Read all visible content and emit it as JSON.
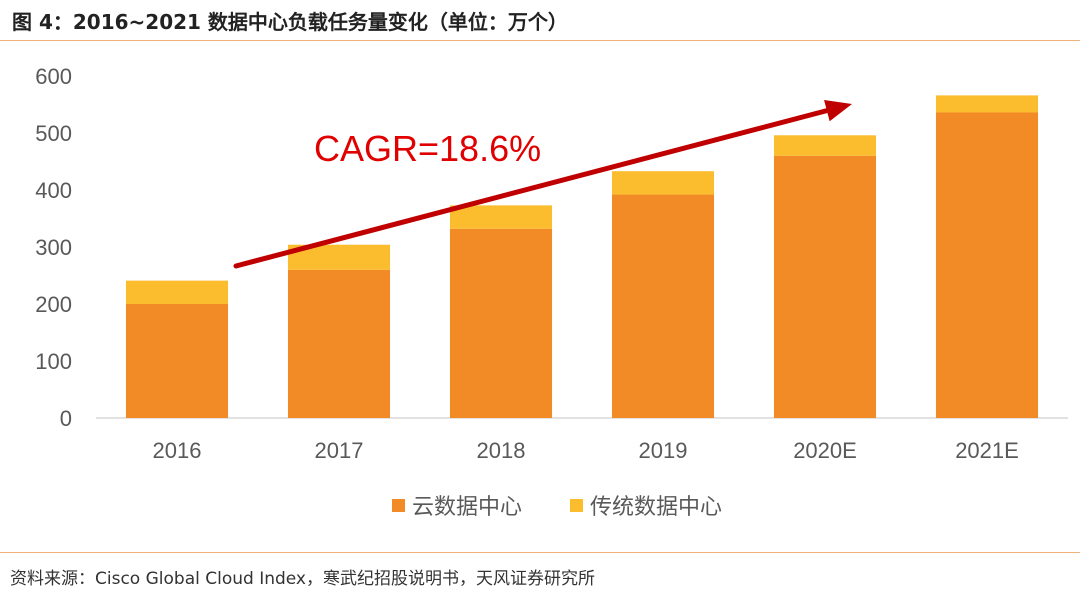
{
  "figure": {
    "title": "图 4：2016~2021 数据中心负载任务量变化（单位：万个）",
    "source": "资料来源：Cisco Global Cloud Index，寒武纪招股说明书，天风证券研究所"
  },
  "chart_data": {
    "type": "bar",
    "stacked": true,
    "categories": [
      "2016",
      "2017",
      "2018",
      "2019",
      "2020E",
      "2021E"
    ],
    "series": [
      {
        "name": "云数据中心",
        "color": "#f28a26",
        "values": [
          200,
          260,
          332,
          392,
          460,
          536
        ]
      },
      {
        "name": "传统数据中心",
        "color": "#fbbd2e",
        "values": [
          41,
          44,
          41,
          41,
          36,
          30
        ]
      }
    ],
    "ylim": [
      0,
      600
    ],
    "yticks": [
      0,
      100,
      200,
      300,
      400,
      500,
      600
    ],
    "grid": false,
    "legend": "bottom",
    "annotation": {
      "text": "CAGR=18.6%",
      "color": "#c00000"
    }
  }
}
